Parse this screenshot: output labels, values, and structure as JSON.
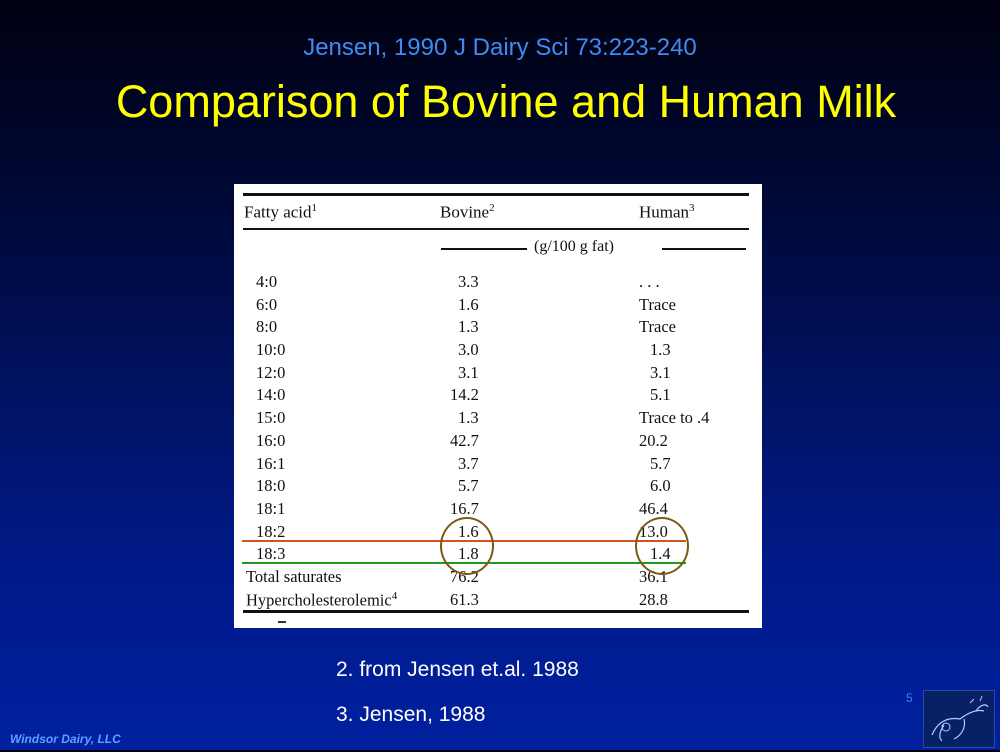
{
  "slide": {
    "citation": "Jensen, 1990 J Dairy Sci 73:223-240",
    "title": "Comparison of Bovine and Human Milk",
    "footnote_2": "2. from Jensen et.al. 1988",
    "footnote_3": "3. Jensen, 1988",
    "page_number": "5",
    "company": "Windsor Dairy, LLC"
  },
  "table": {
    "headers": {
      "fatty_acid": "Fatty acid",
      "fatty_acid_note": "1",
      "bovine": "Bovine",
      "bovine_note": "2",
      "human": "Human",
      "human_note": "3"
    },
    "units": "(g/100 g fat)",
    "rows": [
      {
        "fa": "4:0",
        "bovine": "3.3",
        "human": ". . ."
      },
      {
        "fa": "6:0",
        "bovine": "1.6",
        "human": "Trace"
      },
      {
        "fa": "8:0",
        "bovine": "1.3",
        "human": "Trace"
      },
      {
        "fa": "10:0",
        "bovine": "3.0",
        "human": "1.3"
      },
      {
        "fa": "12:0",
        "bovine": "3.1",
        "human": "3.1"
      },
      {
        "fa": "14:0",
        "bovine": "14.2",
        "human": "5.1"
      },
      {
        "fa": "15:0",
        "bovine": "1.3",
        "human": "Trace to .4"
      },
      {
        "fa": "16:0",
        "bovine": "42.7",
        "human": "20.2"
      },
      {
        "fa": "16:1",
        "bovine": "3.7",
        "human": "5.7"
      },
      {
        "fa": "18:0",
        "bovine": "5.7",
        "human": "6.0"
      },
      {
        "fa": "18:1",
        "bovine": "16.7",
        "human": "46.4"
      },
      {
        "fa": "18:2",
        "bovine": "1.6",
        "human": "13.0"
      },
      {
        "fa": "18:3",
        "bovine": "1.8",
        "human": "1.4"
      },
      {
        "fa": "Total saturates",
        "bovine": "76.2",
        "human": "36.1"
      },
      {
        "fa": "Hypercholesterolemic",
        "fa_note": "4",
        "bovine": "61.3",
        "human": "28.8"
      }
    ]
  },
  "colors": {
    "title": "#ffff00",
    "citation": "#3f8bf0",
    "highlight_red": "#d2541e",
    "highlight_green": "#1f9a1f",
    "circle": "#7a5a10"
  }
}
